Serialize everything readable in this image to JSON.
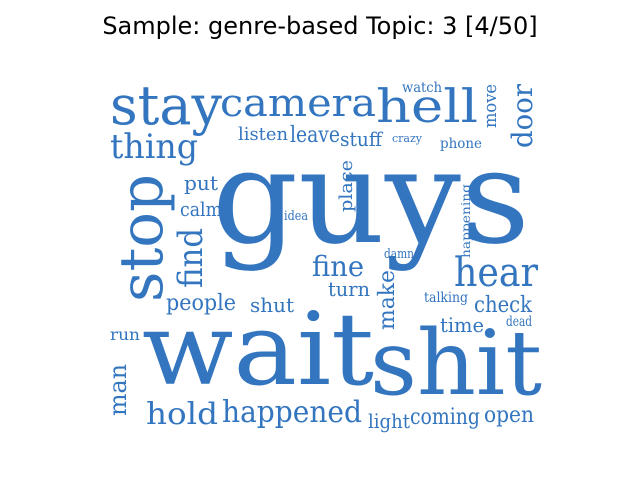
{
  "title": "Sample: genre-based Topic: 3 [4/50]",
  "word_color": "#3375bf",
  "words": [
    "guys",
    "wait",
    "shit",
    "stay",
    "camera",
    "hell",
    "stop",
    "hear",
    "thing",
    "hold",
    "happened",
    "find",
    "fine",
    "people",
    "listen",
    "leave",
    "stuff",
    "door",
    "put",
    "calm",
    "place",
    "make",
    "turn",
    "shut",
    "time",
    "check",
    "man",
    "light",
    "coming",
    "open",
    "watch",
    "move",
    "crazy",
    "phone",
    "idea",
    "happening",
    "damn",
    "talking",
    "dead",
    "run"
  ]
}
